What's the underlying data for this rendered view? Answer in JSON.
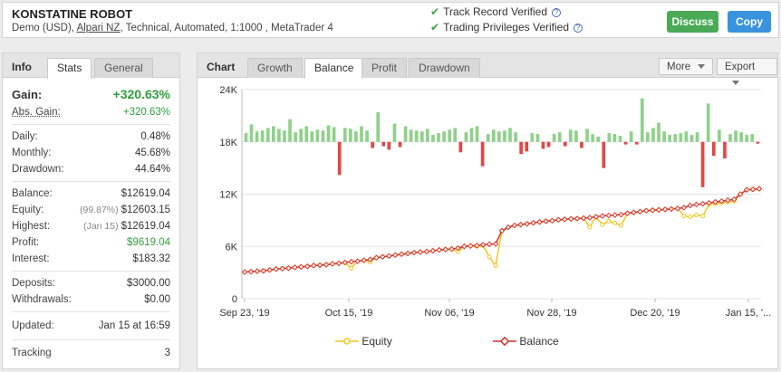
{
  "header": {
    "title": "KONSTATINE ROBOT",
    "sub_prefix": "Demo (USD),",
    "broker": "Alpari NZ",
    "sub_suffix": ", Technical, Automated, 1:1000 , MetaTrader 4",
    "verified1": "Track Record Verified",
    "verified2": "Trading Privileges Verified",
    "discuss": "Discuss",
    "copy": "Copy"
  },
  "left": {
    "tab_head": "Info",
    "tabs": [
      "Stats",
      "General"
    ],
    "gain_label": "Gain:",
    "gain_value": "+320.63%",
    "abs_gain_label": "Abs. Gain:",
    "abs_gain_value": "+320.63%",
    "daily_label": "Daily:",
    "daily_value": "0.48%",
    "monthly_label": "Monthly:",
    "monthly_value": "45.68%",
    "drawdown_label": "Drawdown:",
    "drawdown_value": "44.64%",
    "balance_label": "Balance:",
    "balance_value": "$12619.04",
    "equity_label": "Equity:",
    "equity_pre": "(99.87%)",
    "equity_value": "$12603.15",
    "highest_label": "Highest:",
    "highest_pre": "(Jan 15)",
    "highest_value": "$12619.04",
    "profit_label": "Profit:",
    "profit_value": "$9619.04",
    "interest_label": "Interest:",
    "interest_value": "$183.32",
    "deposits_label": "Deposits:",
    "deposits_value": "$3000.00",
    "withdrawals_label": "Withdrawals:",
    "withdrawals_value": "$0.00",
    "updated_label": "Updated:",
    "updated_value": "Jan 15 at 16:59",
    "tracking_label": "Tracking",
    "tracking_value": "3"
  },
  "right": {
    "tab_head": "Chart",
    "tabs": [
      "Growth",
      "Balance",
      "Profit",
      "Drawdown"
    ],
    "more": "More",
    "export": "Export"
  },
  "colors": {
    "green": "#2f9e3e",
    "bar_up": "#8fd18a",
    "bar_down": "#e04848",
    "equity": "#f2c81e",
    "balance": "#d9322b"
  },
  "chart_data": {
    "type": "line",
    "ylim": [
      0,
      24000
    ],
    "yticks": [
      "24K",
      "18K",
      "12K",
      "6K",
      "0"
    ],
    "xticks": [
      "Sep 23, '19",
      "Oct 15, '19",
      "Nov 06, '19",
      "Nov 28, '19",
      "Dec 20, '19",
      "Jan 15, '..."
    ],
    "series": [
      {
        "name": "Equity",
        "values": [
          3050,
          3100,
          3150,
          3200,
          3300,
          3400,
          3450,
          3500,
          3600,
          3650,
          3700,
          3800,
          3850,
          3900,
          4000,
          4050,
          4150,
          3500,
          4300,
          4400,
          4200,
          4700,
          4800,
          4900,
          5000,
          5100,
          5200,
          5300,
          5350,
          5400,
          5500,
          5600,
          5650,
          5700,
          5400,
          6000,
          6050,
          6000,
          6100,
          4800,
          3800,
          7800,
          8200,
          8400,
          8500,
          8600,
          8700,
          8800,
          8900,
          8950,
          9050,
          9100,
          9150,
          9200,
          9250,
          8200,
          9400,
          8500,
          8900,
          8700,
          8400,
          9800,
          9900,
          10000,
          10100,
          10150,
          10200,
          10250,
          10300,
          10350,
          9500,
          9400,
          9600,
          9500,
          10800,
          10900,
          11000,
          11100,
          11200,
          12000,
          12500,
          12550,
          12600
        ]
      },
      {
        "name": "Balance",
        "values": [
          3050,
          3100,
          3150,
          3200,
          3300,
          3400,
          3450,
          3500,
          3600,
          3650,
          3700,
          3800,
          3850,
          3900,
          4000,
          4050,
          4150,
          4250,
          4300,
          4400,
          4500,
          4700,
          4800,
          4900,
          5000,
          5100,
          5200,
          5300,
          5350,
          5400,
          5500,
          5600,
          5650,
          5700,
          5800,
          6000,
          6050,
          6100,
          6200,
          6250,
          6300,
          7800,
          8200,
          8400,
          8500,
          8600,
          8700,
          8800,
          8900,
          8950,
          9050,
          9100,
          9150,
          9200,
          9250,
          9300,
          9400,
          9500,
          9550,
          9600,
          9650,
          9800,
          9900,
          10000,
          10100,
          10150,
          10200,
          10250,
          10300,
          10350,
          10450,
          10700,
          10800,
          10900,
          11000,
          11100,
          11200,
          11300,
          11400,
          12000,
          12500,
          12550,
          12619
        ]
      }
    ],
    "bars": [
      1000,
      2000,
      1200,
      1300,
      1600,
      1800,
      1500,
      1300,
      2600,
      1100,
      1500,
      1800,
      1200,
      1400,
      1300,
      1900,
      1700,
      -3800,
      1600,
      1500,
      1200,
      1800,
      1300,
      -700,
      3400,
      -500,
      -900,
      2100,
      -600,
      1800,
      1400,
      1300,
      1200,
      1500,
      800,
      1000,
      1200,
      1400,
      1600,
      -1200,
      1100,
      1600,
      1800,
      -2800,
      900,
      1400,
      1200,
      1300,
      1600,
      1100,
      -1400,
      -1100,
      1000,
      900,
      -800,
      -600,
      900,
      1100,
      -500,
      1400,
      1300,
      -700,
      1500,
      900,
      600,
      -3000,
      1000,
      900,
      700,
      -300,
      1200,
      -300,
      5000,
      1100,
      1600,
      2200,
      1200,
      800,
      900,
      1000,
      1200,
      800,
      1100,
      -5200,
      4400,
      -1600,
      1400,
      -1900,
      900,
      1300,
      1100,
      800,
      900,
      -200
    ]
  },
  "legend": {
    "equity": "Equity",
    "balance": "Balance"
  }
}
